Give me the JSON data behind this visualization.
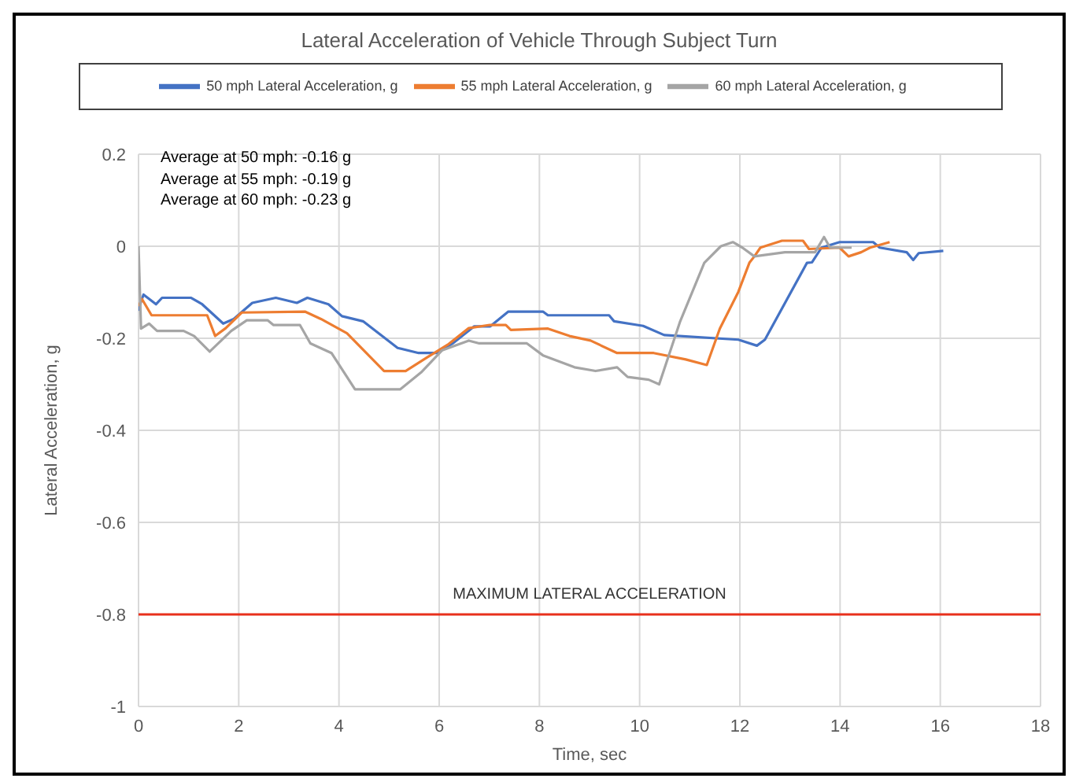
{
  "chart_data": {
    "type": "line",
    "title": "Lateral Acceleration of Vehicle Through Subject Turn",
    "xlabel": "Time, sec",
    "ylabel": "Lateral Acceleration, g",
    "xlim": [
      0,
      18
    ],
    "xticks": [
      0,
      2,
      4,
      6,
      8,
      10,
      12,
      14,
      16,
      18
    ],
    "ylim": [
      -1,
      0.2
    ],
    "yticks": [
      -1,
      -0.8,
      -0.6,
      -0.4,
      -0.2,
      0,
      0.2
    ],
    "grid": true,
    "legend": "top",
    "marker": "none",
    "line_style": "solid",
    "annotations": [
      "Average at 50 mph: -0.16 g",
      "Average at 55 mph: -0.19 g",
      "Average at 60 mph: -0.23 g"
    ],
    "ref_lines": [
      {
        "axis": "y",
        "value": -0.8,
        "label": "MAXIMUM LATERAL ACCELERATION",
        "color": "#e8301c"
      }
    ],
    "series": [
      {
        "name": "50 mph Lateral Acceleration, g",
        "color": "#4472c4",
        "x": [
          0,
          0.05,
          0.1,
          0.35,
          0.47,
          1.05,
          1.27,
          1.69,
          1.9,
          2.27,
          2.74,
          3.16,
          3.37,
          3.79,
          4.06,
          4.48,
          5.17,
          5.59,
          5.96,
          6.27,
          6.7,
          7.02,
          7.38,
          8.07,
          8.17,
          9.39,
          9.49,
          10.07,
          10.49,
          11.97,
          12.34,
          12.5,
          13.34,
          13.44,
          13.63,
          13.99,
          14.66,
          14.79,
          15.33,
          15.46,
          15.57,
          16.06
        ],
        "values": [
          -0.14,
          -0.12,
          -0.105,
          -0.126,
          -0.112,
          -0.112,
          -0.126,
          -0.168,
          -0.158,
          -0.123,
          -0.112,
          -0.123,
          -0.112,
          -0.126,
          -0.152,
          -0.163,
          -0.221,
          -0.232,
          -0.232,
          -0.211,
          -0.174,
          -0.174,
          -0.142,
          -0.142,
          -0.15,
          -0.15,
          -0.163,
          -0.173,
          -0.193,
          -0.203,
          -0.216,
          -0.203,
          -0.036,
          -0.035,
          -0.003,
          0.009,
          0.009,
          -0.003,
          -0.013,
          -0.03,
          -0.015,
          -0.01
        ]
      },
      {
        "name": "55 mph Lateral Acceleration, g",
        "color": "#ed7d31",
        "x": [
          0,
          0.07,
          0.26,
          1.37,
          1.53,
          1.74,
          2.06,
          3.32,
          3.64,
          4.16,
          4.9,
          5.33,
          5.75,
          6.17,
          6.59,
          7.01,
          7.33,
          7.43,
          8.17,
          8.6,
          9.02,
          9.55,
          10.28,
          10.92,
          11.34,
          11.6,
          11.97,
          12.19,
          12.29,
          12.41,
          12.84,
          13.26,
          13.38,
          13.99,
          14.17,
          14.42,
          14.6,
          14.99
        ],
        "values": [
          -0.13,
          -0.115,
          -0.15,
          -0.15,
          -0.195,
          -0.178,
          -0.144,
          -0.142,
          -0.158,
          -0.189,
          -0.271,
          -0.271,
          -0.242,
          -0.214,
          -0.178,
          -0.171,
          -0.171,
          -0.182,
          -0.179,
          -0.195,
          -0.205,
          -0.232,
          -0.232,
          -0.246,
          -0.258,
          -0.179,
          -0.099,
          -0.036,
          -0.022,
          -0.003,
          0.012,
          0.012,
          -0.006,
          -0.003,
          -0.022,
          -0.013,
          -0.003,
          0.009
        ]
      },
      {
        "name": "60 mph Lateral Acceleration, g",
        "color": "#a5a5a5",
        "x": [
          0,
          0.05,
          0.21,
          0.37,
          0.9,
          1.11,
          1.42,
          1.85,
          2.16,
          2.58,
          2.69,
          3.22,
          3.43,
          3.85,
          4.32,
          5.22,
          5.64,
          6.06,
          6.59,
          6.8,
          7.75,
          8.07,
          8.7,
          9.12,
          9.55,
          9.76,
          10.18,
          10.39,
          10.81,
          11.29,
          11.62,
          11.86,
          12.05,
          12.29,
          12.9,
          13.5,
          13.68,
          13.8,
          14.23
        ],
        "values": [
          0,
          -0.179,
          -0.168,
          -0.184,
          -0.184,
          -0.195,
          -0.229,
          -0.184,
          -0.161,
          -0.161,
          -0.171,
          -0.171,
          -0.211,
          -0.232,
          -0.311,
          -0.311,
          -0.274,
          -0.226,
          -0.205,
          -0.211,
          -0.211,
          -0.237,
          -0.263,
          -0.271,
          -0.263,
          -0.284,
          -0.29,
          -0.3,
          -0.163,
          -0.036,
          0,
          0.009,
          -0.003,
          -0.022,
          -0.013,
          -0.013,
          0.02,
          -0.003,
          -0.003
        ]
      }
    ]
  }
}
